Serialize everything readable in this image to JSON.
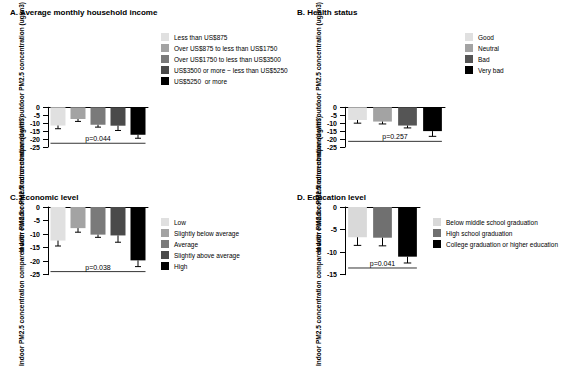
{
  "chart_data": [
    {
      "type": "bar",
      "title": "A. Average monthly household income",
      "categories": [
        "Less than US$875",
        "Over US$875 to less than US$1750",
        "Over US$1750 to less than US$3500",
        "US$3500 or more ~ less than US$5250",
        "US$5250  or more"
      ],
      "values": [
        -11.5,
        -7.4,
        -11,
        -11.6,
        -17.3
      ],
      "errors": [
        2,
        1.5,
        1.5,
        3,
        2.2
      ],
      "colors": [
        "#e0e0e0",
        "#a3a3a3",
        "#7a7a7a",
        "#4a4a4a",
        "#000000"
      ],
      "y_label": "Indoor PM2.5 concentration compared with outdoor PM2.5 concentration (ug/m3)",
      "ylim": [
        -25,
        0
      ],
      "yticks": [
        -25,
        -20,
        -15,
        -10,
        -5,
        0
      ],
      "annotations": [
        "p=0.044"
      ],
      "legend": "right",
      "tick_labels": "y",
      "grid": false
    },
    {
      "type": "bar",
      "title": "B. Health status",
      "categories": [
        "Good",
        "Neutral",
        "Bad",
        "Very bad"
      ],
      "values": [
        -8,
        -9,
        -11.5,
        -15
      ],
      "errors": [
        2,
        1.5,
        1.5,
        3.3
      ],
      "colors": [
        "#e0e0e0",
        "#a3a3a3",
        "#555555",
        "#000000"
      ],
      "y_label": "Indoor PM2.5 concentration compared with outdoor PM2.5 concentration (ug/m3)",
      "ylim": [
        -25,
        0
      ],
      "yticks": [
        -25,
        -20,
        -15,
        -10,
        -5,
        0
      ],
      "annotations": [
        "p=0.257"
      ],
      "legend": "right",
      "tick_labels": "y",
      "grid": false
    },
    {
      "type": "bar",
      "title": "C. Economic level",
      "categories": [
        "Low",
        "Slightly below average",
        "Average",
        "Slightly above average",
        "High"
      ],
      "values": [
        -12.4,
        -7.8,
        -10.2,
        -10.5,
        -19.7
      ],
      "errors": [
        2,
        1.5,
        1,
        2.5,
        2.3
      ],
      "colors": [
        "#e0e0e0",
        "#a3a3a3",
        "#7a7a7a",
        "#4a4a4a",
        "#000000"
      ],
      "y_label": "Indoor PM2.5 concentration compared with outdoor PM2.5 concentration (ug/m3)",
      "ylim": [
        -25,
        0
      ],
      "yticks": [
        -25,
        -20,
        -15,
        -10,
        -5,
        0
      ],
      "annotations": [
        "p=0.038"
      ],
      "legend": "right",
      "tick_labels": "y",
      "grid": false
    },
    {
      "type": "bar",
      "title": "D. Education level",
      "categories": [
        "Below middle school graduation",
        "High school graduation",
        "College graduation or higher education"
      ],
      "values": [
        -6.7,
        -6.8,
        -11
      ],
      "errors": [
        1.8,
        1.8,
        1.4
      ],
      "colors": [
        "#d9d9d9",
        "#707070",
        "#000000"
      ],
      "y_label": "Indoor PM2.5 concentration compared with outdoor PM2.5 concentration (ug/m3)",
      "ylim": [
        -15,
        0
      ],
      "yticks": [
        -15,
        -10,
        -5,
        0
      ],
      "annotations": [
        "p=0.041"
      ],
      "legend": "right",
      "tick_labels": "y",
      "grid": false
    }
  ]
}
